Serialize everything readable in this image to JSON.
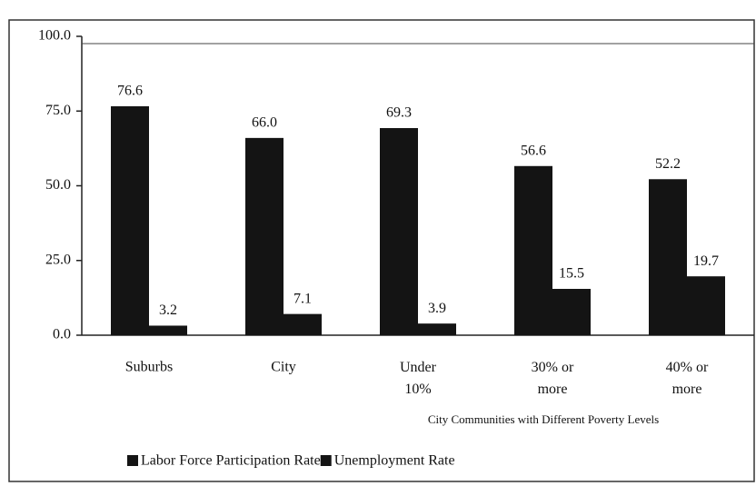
{
  "chart_data": {
    "type": "bar",
    "x_label": "City Communities with Different Poverty Levels",
    "categories": [
      "Suburbs",
      "City",
      "Under 10%",
      "30% or more",
      "40% or more"
    ],
    "series": [
      {
        "name": "Labor Force Participation Rate",
        "color": "#141414",
        "values": [
          76.6,
          66.0,
          69.3,
          56.6,
          52.2
        ],
        "value_labels": [
          "76.6",
          "66.0",
          "69.3",
          "56.6",
          "52.2"
        ]
      },
      {
        "name": "Unemployment Rate",
        "color": "#141414",
        "values": [
          3.2,
          7.1,
          3.9,
          15.5,
          19.7
        ],
        "value_labels": [
          "3.2",
          "7.1",
          "3.9",
          "15.5",
          "19.7"
        ]
      }
    ],
    "ylim": [
      0,
      100
    ],
    "yticks": [
      {
        "value": 0,
        "label": "0.0"
      },
      {
        "value": 25,
        "label": "25.0"
      },
      {
        "value": 50,
        "label": "50.0"
      },
      {
        "value": 75,
        "label": "75.0"
      },
      {
        "value": 100,
        "label": "100.0"
      }
    ],
    "legend": "bottom"
  }
}
